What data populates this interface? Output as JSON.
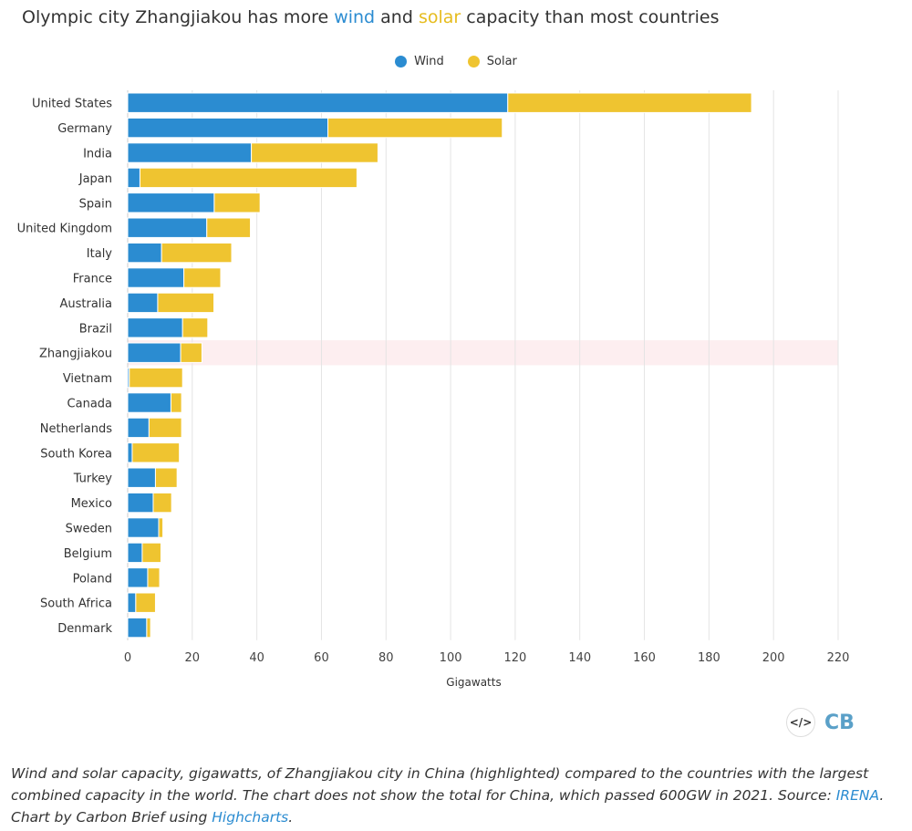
{
  "title": {
    "prefix": "Olympic city Zhangjiakou has more ",
    "wind_word": "wind",
    "middle": " and ",
    "solar_word": "solar",
    "suffix": " capacity than most countries"
  },
  "colors": {
    "wind": "#2b8cd1",
    "solar": "#efc430",
    "highlight": "#fdeef0",
    "grid": "#e4e4e4"
  },
  "chart_data": {
    "type": "bar",
    "orientation": "horizontal",
    "stacked": true,
    "categories": [
      "United States",
      "Germany",
      "India",
      "Japan",
      "Spain",
      "United Kingdom",
      "Italy",
      "France",
      "Australia",
      "Brazil",
      "Zhangjiakou",
      "Vietnam",
      "Canada",
      "Netherlands",
      "South Korea",
      "Turkey",
      "Mexico",
      "Sweden",
      "Belgium",
      "Poland",
      "South Africa",
      "Denmark"
    ],
    "series": [
      {
        "name": "Wind",
        "values": [
          117.7,
          62,
          38.3,
          3.8,
          26.8,
          24.5,
          10.5,
          17.4,
          9.3,
          17,
          16.4,
          0.5,
          13.4,
          6.6,
          1.4,
          8.6,
          7.9,
          9.6,
          4.5,
          6.2,
          2.5,
          5.9
        ]
      },
      {
        "name": "Solar",
        "values": [
          75.5,
          54,
          39.2,
          67.2,
          14.2,
          13.5,
          21.7,
          11.4,
          17.4,
          7.8,
          6.6,
          16.5,
          3.3,
          10.1,
          14.6,
          6.7,
          5.7,
          1.3,
          5.8,
          3.7,
          6.1,
          1.2
        ]
      }
    ],
    "highlighted_category": "Zhangjiakou",
    "xlabel": "Gigawatts",
    "xlim": [
      0,
      220
    ],
    "xticks": [
      0,
      20,
      40,
      60,
      80,
      100,
      120,
      140,
      160,
      180,
      200,
      220
    ],
    "grid": true,
    "legend_position": "top-center"
  },
  "logos": {
    "embed": "</>",
    "brand": "CB"
  },
  "caption": {
    "text1": "Wind and solar capacity, gigawatts, of Zhangjiakou city in China (highlighted) compared to the countries with the largest combined capacity in the world. The chart does not show the total for China, which passed 600GW in 2021. Source: ",
    "link1": "IRENA",
    "text2": ". Chart by Carbon Brief using ",
    "link2": "Highcharts",
    "text3": "."
  }
}
